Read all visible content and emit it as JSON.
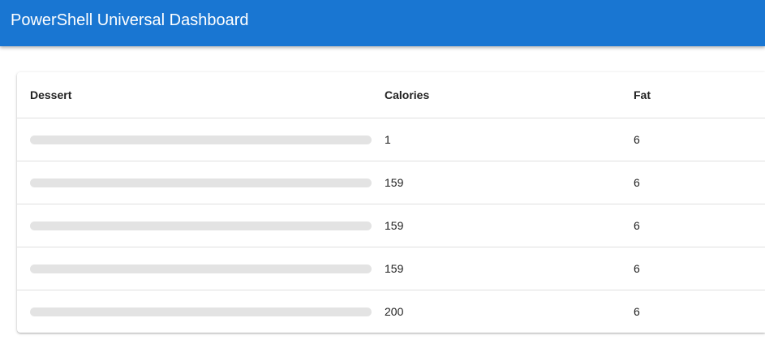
{
  "header": {
    "title": "PowerShell Universal Dashboard"
  },
  "table": {
    "columns": [
      "Dessert",
      "Calories",
      "Fat"
    ],
    "rows": [
      {
        "calories": 1,
        "fat": 6
      },
      {
        "calories": 159,
        "fat": 6
      },
      {
        "calories": 159,
        "fat": 6
      },
      {
        "calories": 159,
        "fat": 6
      },
      {
        "calories": 200,
        "fat": 6
      }
    ]
  }
}
